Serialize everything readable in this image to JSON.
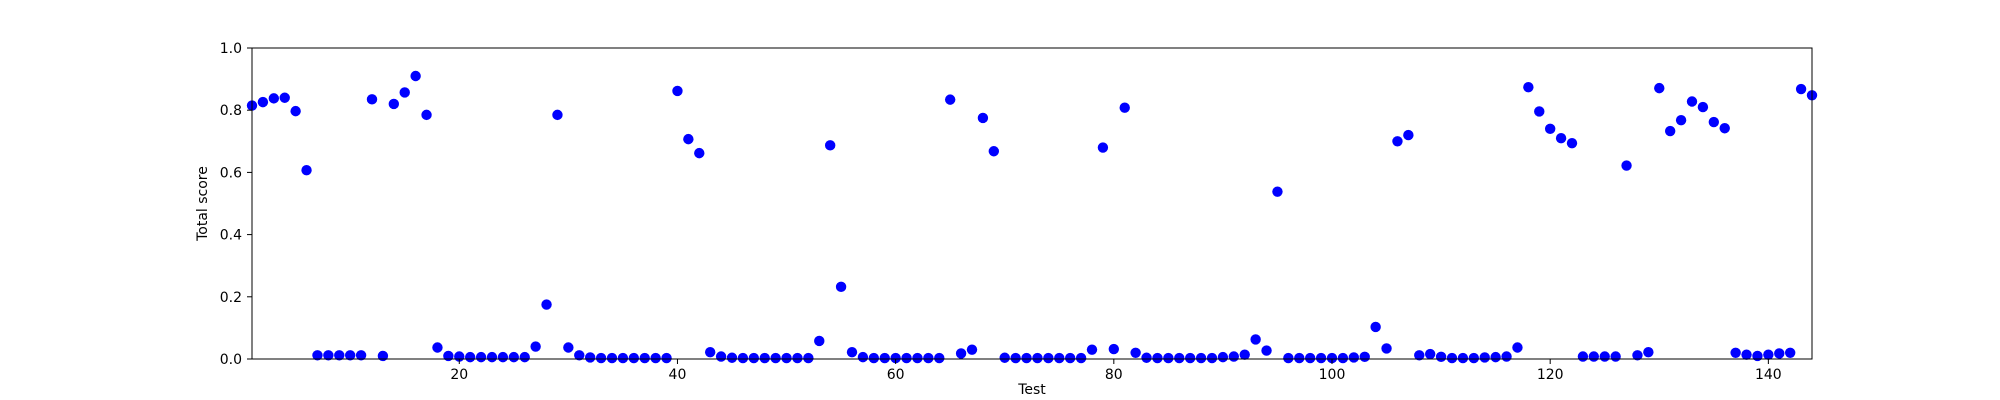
{
  "chart_data": {
    "type": "scatter",
    "title": "",
    "xlabel": "Test",
    "ylabel": "Total score",
    "xlim": [
      1,
      144
    ],
    "ylim": [
      0,
      1.0
    ],
    "xticks": [
      20,
      40,
      60,
      80,
      100,
      120,
      140
    ],
    "xtick_labels": [
      "20",
      "40",
      "60",
      "80",
      "100",
      "120",
      "140"
    ],
    "yticks": [
      0.0,
      0.2,
      0.4,
      0.6,
      0.8,
      1.0
    ],
    "ytick_labels": [
      "0.0",
      "0.2",
      "0.4",
      "0.6",
      "0.8",
      "1.0"
    ],
    "grid": false,
    "legend": "none",
    "marker_color": "#0000ff",
    "x": [
      1,
      2,
      3,
      4,
      5,
      6,
      7,
      8,
      9,
      10,
      11,
      12,
      13,
      14,
      15,
      16,
      17,
      18,
      19,
      20,
      21,
      22,
      23,
      24,
      25,
      26,
      27,
      28,
      29,
      30,
      31,
      32,
      33,
      34,
      35,
      36,
      37,
      38,
      39,
      40,
      41,
      42,
      43,
      44,
      45,
      46,
      47,
      48,
      49,
      50,
      51,
      52,
      53,
      54,
      55,
      56,
      57,
      58,
      59,
      60,
      61,
      62,
      63,
      64,
      65,
      66,
      67,
      68,
      69,
      70,
      71,
      72,
      73,
      74,
      75,
      76,
      77,
      78,
      79,
      80,
      81,
      82,
      83,
      84,
      85,
      86,
      87,
      88,
      89,
      90,
      91,
      92,
      93,
      94,
      95,
      96,
      97,
      98,
      99,
      100,
      101,
      102,
      103,
      104,
      105,
      106,
      107,
      108,
      109,
      110,
      111,
      112,
      113,
      114,
      115,
      116,
      117,
      118,
      119,
      120,
      121,
      122,
      123,
      124,
      125,
      126,
      127,
      128,
      129,
      130,
      131,
      132,
      133,
      134,
      135,
      136,
      137,
      138,
      139,
      140,
      141,
      142,
      143,
      144
    ],
    "y": [
      0.815,
      0.826,
      0.838,
      0.84,
      0.797,
      0.607,
      0.012,
      0.012,
      0.012,
      0.012,
      0.012,
      0.835,
      0.01,
      0.82,
      0.857,
      0.91,
      0.785,
      0.037,
      0.01,
      0.008,
      0.006,
      0.006,
      0.006,
      0.006,
      0.006,
      0.006,
      0.04,
      0.175,
      0.785,
      0.037,
      0.012,
      0.005,
      0.003,
      0.003,
      0.003,
      0.003,
      0.003,
      0.003,
      0.003,
      0.862,
      0.707,
      0.662,
      0.022,
      0.008,
      0.004,
      0.003,
      0.003,
      0.003,
      0.003,
      0.003,
      0.003,
      0.003,
      0.058,
      0.687,
      0.232,
      0.022,
      0.006,
      0.003,
      0.003,
      0.003,
      0.003,
      0.003,
      0.003,
      0.003,
      0.834,
      0.018,
      0.03,
      0.775,
      0.668,
      0.004,
      0.003,
      0.003,
      0.003,
      0.003,
      0.003,
      0.003,
      0.003,
      0.03,
      0.68,
      0.032,
      0.808,
      0.02,
      0.004,
      0.003,
      0.003,
      0.003,
      0.003,
      0.003,
      0.003,
      0.006,
      0.008,
      0.014,
      0.063,
      0.027,
      0.538,
      0.003,
      0.003,
      0.003,
      0.003,
      0.003,
      0.003,
      0.005,
      0.007,
      0.103,
      0.034,
      0.7,
      0.72,
      0.012,
      0.016,
      0.007,
      0.003,
      0.003,
      0.003,
      0.005,
      0.006,
      0.008,
      0.037,
      0.874,
      0.796,
      0.74,
      0.71,
      0.694,
      0.008,
      0.008,
      0.008,
      0.008,
      0.622,
      0.012,
      0.022,
      0.871,
      0.733,
      0.768,
      0.828,
      0.81,
      0.762,
      0.742,
      0.02,
      0.014,
      0.01,
      0.014,
      0.018,
      0.02,
      0.868,
      0.848
    ]
  }
}
